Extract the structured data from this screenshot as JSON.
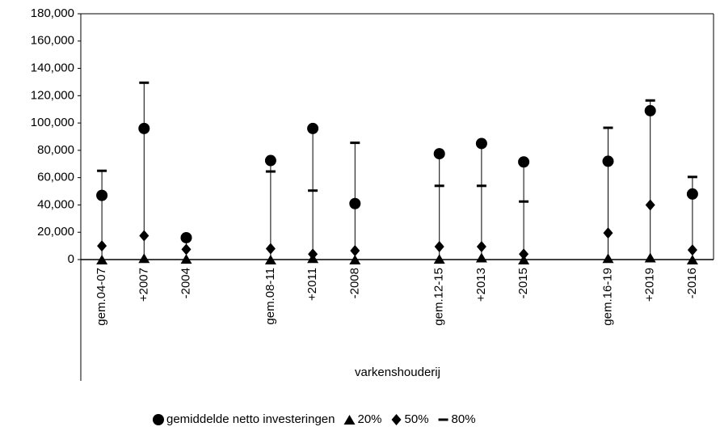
{
  "chart_data": {
    "type": "dot",
    "x_label": "varkenshouderij",
    "categories": [
      "gem.04-07",
      "+2007",
      "-2004",
      null,
      "gem.08-11",
      "+2011",
      "-2008",
      null,
      "gem.12-15",
      "+2013",
      "-2015",
      null,
      "gem.16-19",
      "+2019",
      "-2016"
    ],
    "series": [
      {
        "name": "gemiddelde netto investeringen",
        "marker": "circle",
        "color": "#000000",
        "values": [
          47000,
          96000,
          16000,
          null,
          72500,
          96000,
          41000,
          null,
          77500,
          85000,
          71500,
          null,
          72000,
          109000,
          48000
        ]
      },
      {
        "name": "20%",
        "marker": "triangle",
        "color": "#000000",
        "values": [
          0,
          1000,
          500,
          null,
          0,
          1000,
          0,
          null,
          500,
          1500,
          0,
          null,
          1000,
          1500,
          0
        ]
      },
      {
        "name": "50%",
        "marker": "diamond",
        "color": "#000000",
        "values": [
          10000,
          17500,
          7500,
          null,
          8000,
          4000,
          6500,
          null,
          9500,
          9500,
          4000,
          null,
          19500,
          40000,
          7000
        ]
      },
      {
        "name": "80%",
        "marker": "dash",
        "color": "#000000",
        "values": [
          65000,
          129500,
          17000,
          null,
          64500,
          50500,
          85500,
          null,
          54000,
          54000,
          42500,
          null,
          96500,
          116500,
          60500
        ]
      }
    ],
    "high_low_lines": true,
    "ylim": [
      0,
      180000
    ],
    "yticks": [
      0,
      {
        "value": 20000,
        "label": "20,000"
      },
      {
        "value": 40000,
        "label": "40,000"
      },
      {
        "value": 60000,
        "label": "60,000"
      },
      {
        "value": 80000,
        "label": "80,000"
      },
      {
        "value": 100000,
        "label": "100,000"
      },
      {
        "value": 120000,
        "label": "120,000"
      },
      {
        "value": 140000,
        "label": "140,000"
      },
      {
        "value": 160000,
        "label": "160,000"
      },
      {
        "value": 180000,
        "label": "180,000"
      }
    ],
    "grid": false,
    "legend": "bottom"
  }
}
